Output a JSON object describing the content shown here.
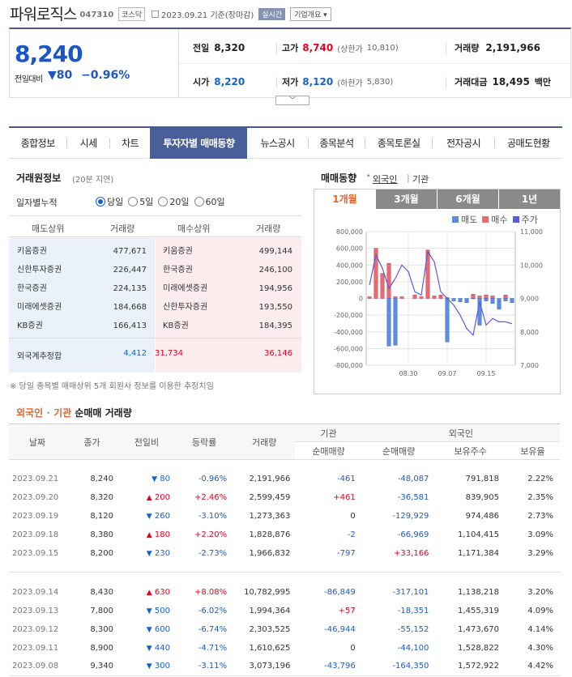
{
  "header": {
    "name": "파워로직스",
    "code": "047310",
    "market": "코스닥",
    "date": "2023.09.21",
    "date_suffix": "기준(장마감)",
    "realtime": "실시간",
    "company_btn": "기업개요"
  },
  "quote": {
    "price": "8,240",
    "diff_label": "전일대비",
    "diff_symbol": "▼",
    "diff": "80",
    "rate": "−0.96%",
    "prev_close_label": "전일",
    "prev_close": "8,320",
    "high_label": "고가",
    "high": "8,740",
    "upper_limit_label": "(상한가",
    "upper_limit": "10,810)",
    "volume_label": "거래량",
    "volume": "2,191,966",
    "open_label": "시가",
    "open": "8,220",
    "low_label": "저가",
    "low": "8,120",
    "lower_limit_label": "(하한가",
    "lower_limit": "5,830)",
    "amount_label": "거래대금",
    "amount": "18,495",
    "amount_unit": "백만"
  },
  "tabs": [
    "종합정보",
    "시세",
    "차트",
    "투자자별 매매동향",
    "뉴스공시",
    "종목분석",
    "종목토론실",
    "전자공시",
    "공매도현황"
  ],
  "broker": {
    "title": "거래원정보",
    "subtitle": "(20분 지연)",
    "period_label": "일자별누적",
    "periods": [
      "당일",
      "5일",
      "20일",
      "60일"
    ],
    "headers": [
      "매도상위",
      "거래량",
      "매수상위",
      "거래량"
    ],
    "sell": [
      {
        "name": "키움증권",
        "vol": "477,671"
      },
      {
        "name": "신한투자증권",
        "vol": "226,447"
      },
      {
        "name": "한국증권",
        "vol": "224,135"
      },
      {
        "name": "미래에셋증권",
        "vol": "184,668"
      },
      {
        "name": "KB증권",
        "vol": "166,413"
      }
    ],
    "buy": [
      {
        "name": "키움증권",
        "vol": "499,144"
      },
      {
        "name": "한국증권",
        "vol": "246,100"
      },
      {
        "name": "미래에셋증권",
        "vol": "194,956"
      },
      {
        "name": "신한투자증권",
        "vol": "193,550"
      },
      {
        "name": "KB증권",
        "vol": "184,395"
      }
    ],
    "foreign_label": "외국계추정합",
    "foreign_sell": "4,412",
    "foreign_net": "31,734",
    "foreign_buy": "36,146",
    "note": "※ 당일 종목별 매매상위 5개 회원사 정보를 이용한 추정치임"
  },
  "trend": {
    "title": "매매동향",
    "foreign": "외국인",
    "sep": "|",
    "inst": "기관",
    "tabs": [
      "1개월",
      "3개월",
      "6개월",
      "1년"
    ],
    "legend": [
      "매도",
      "매수",
      "주가"
    ],
    "colors": {
      "sell": "#5b8ee0",
      "buy": "#e86a72",
      "price": "#5a5ae0"
    }
  },
  "chart_data": {
    "type": "bar",
    "x": [
      "08.22",
      "08.23",
      "08.24",
      "08.25",
      "08.28",
      "08.29",
      "08.30",
      "08.31",
      "09.01",
      "09.04",
      "09.05",
      "09.06",
      "09.07",
      "09.08",
      "09.11",
      "09.12",
      "09.13",
      "09.14",
      "09.15",
      "09.18",
      "09.19",
      "09.20",
      "09.21"
    ],
    "xticks": [
      "08.30",
      "09.07",
      "09.15"
    ],
    "series": [
      {
        "name": "매도",
        "axis": "left",
        "values": [
          0,
          0,
          0,
          -570000,
          -560000,
          0,
          0,
          0,
          0,
          0,
          0,
          0,
          -520000,
          -30000,
          -40000,
          -50000,
          -5000,
          -320000,
          -30000,
          -60000,
          -130000,
          -30000,
          -50000
        ]
      },
      {
        "name": "매수",
        "axis": "left",
        "values": [
          20000,
          600000,
          300000,
          420000,
          20000,
          20000,
          0,
          40000,
          20000,
          580000,
          30000,
          40000,
          10000,
          0,
          0,
          0,
          50000,
          30000,
          40000,
          30000,
          0,
          40000,
          0
        ]
      },
      {
        "name": "주가",
        "axis": "right",
        "type": "line",
        "values": [
          9400,
          10300,
          9900,
          9300,
          9600,
          10000,
          9800,
          9200,
          9100,
          10400,
          10100,
          9200,
          9000,
          8800,
          8500,
          8100,
          7900,
          8900,
          8200,
          8400,
          8300,
          8300,
          8240
        ]
      }
    ],
    "yticks_left": [
      "800,000",
      "600,000",
      "400,000",
      "200,000",
      "0",
      "-200,000",
      "-400,000",
      "-600,000",
      "-800,000"
    ],
    "yticks_right": [
      "11,000",
      "10,000",
      "9,000",
      "8,000",
      "7,000"
    ],
    "ylim_left": [
      -800000,
      800000
    ],
    "ylim_right": [
      7000,
      11000
    ],
    "grid": true
  },
  "flow": {
    "title_a": "외국인",
    "title_dot": "·",
    "title_b": "기관",
    "title_c": "순매매 거래량",
    "headers": [
      "날짜",
      "종가",
      "전일비",
      "등락률",
      "거래량",
      "기관",
      "외국인",
      "순매매량",
      "순매매량",
      "보유주수",
      "보유율"
    ],
    "rows": [
      {
        "date": "2023.09.21",
        "close": "8,240",
        "dir": "▼",
        "diff": "80",
        "rate": "-0.96%",
        "vol": "2,191,966",
        "inst": "-461",
        "frgn": "-48,087",
        "hold": "791,818",
        "ratio": "2.22%"
      },
      {
        "date": "2023.09.20",
        "close": "8,320",
        "dir": "▲",
        "diff": "200",
        "rate": "+2.46%",
        "vol": "2,599,459",
        "inst": "+461",
        "frgn": "-36,581",
        "hold": "839,905",
        "ratio": "2.35%"
      },
      {
        "date": "2023.09.19",
        "close": "8,120",
        "dir": "▼",
        "diff": "260",
        "rate": "-3.10%",
        "vol": "1,273,363",
        "inst": "0",
        "frgn": "-129,929",
        "hold": "974,486",
        "ratio": "2.73%"
      },
      {
        "date": "2023.09.18",
        "close": "8,380",
        "dir": "▲",
        "diff": "180",
        "rate": "+2.20%",
        "vol": "1,828,876",
        "inst": "-2",
        "frgn": "-66,969",
        "hold": "1,104,415",
        "ratio": "3.09%"
      },
      {
        "date": "2023.09.15",
        "close": "8,200",
        "dir": "▼",
        "diff": "230",
        "rate": "-2.73%",
        "vol": "1,966,832",
        "inst": "-797",
        "frgn": "+33,166",
        "hold": "1,171,384",
        "ratio": "3.29%"
      },
      {
        "date": "2023.09.14",
        "close": "8,430",
        "dir": "▲",
        "diff": "630",
        "rate": "+8.08%",
        "vol": "10,782,995",
        "inst": "-86,849",
        "frgn": "-317,101",
        "hold": "1,138,218",
        "ratio": "3.20%"
      },
      {
        "date": "2023.09.13",
        "close": "7,800",
        "dir": "▼",
        "diff": "500",
        "rate": "-6.02%",
        "vol": "1,994,364",
        "inst": "+57",
        "frgn": "-18,351",
        "hold": "1,455,319",
        "ratio": "4.09%"
      },
      {
        "date": "2023.09.12",
        "close": "8,300",
        "dir": "▼",
        "diff": "600",
        "rate": "-6.74%",
        "vol": "2,303,525",
        "inst": "-46,944",
        "frgn": "-55,152",
        "hold": "1,473,670",
        "ratio": "4.14%"
      },
      {
        "date": "2023.09.11",
        "close": "8,900",
        "dir": "▼",
        "diff": "440",
        "rate": "-4.71%",
        "vol": "1,610,625",
        "inst": "0",
        "frgn": "-44,100",
        "hold": "1,528,822",
        "ratio": "4.30%"
      },
      {
        "date": "2023.09.08",
        "close": "9,340",
        "dir": "▼",
        "diff": "300",
        "rate": "-3.11%",
        "vol": "3,073,196",
        "inst": "-43,796",
        "frgn": "-164,350",
        "hold": "1,572,922",
        "ratio": "4.42%"
      }
    ]
  }
}
